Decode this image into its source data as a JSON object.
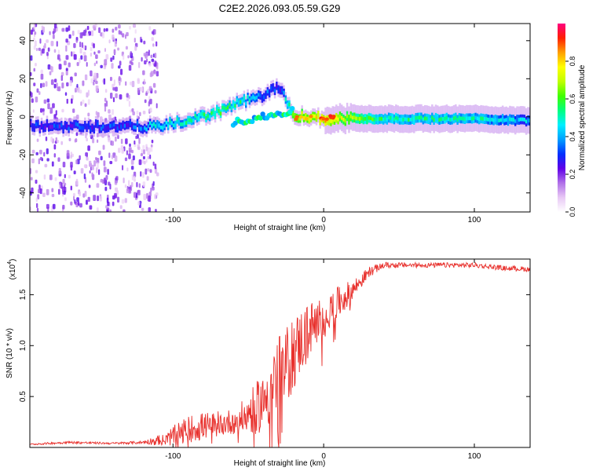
{
  "title": "C2E2.2026.093.05.59.G29",
  "chart_data": [
    {
      "type": "heatmap",
      "title": "C2E2.2026.093.05.59.G29",
      "xlabel": "Height of straight line (km)",
      "ylabel": "Frequency (Hz)",
      "xlim": [
        -195,
        137
      ],
      "ylim": [
        -50,
        49
      ],
      "xticks": [
        {
          "v": -100,
          "label": "-100"
        },
        {
          "v": 0,
          "label": "0"
        },
        {
          "v": 100,
          "label": "100"
        }
      ],
      "yticks": [
        {
          "v": -40,
          "label": "-40"
        },
        {
          "v": -20,
          "label": "-20"
        },
        {
          "v": 0,
          "label": "0"
        },
        {
          "v": 20,
          "label": "20"
        },
        {
          "v": 40,
          "label": "40"
        }
      ],
      "colorbar": {
        "label": "Normalized spectral amplitude",
        "range": [
          0,
          1
        ],
        "ticks": [
          {
            "v": 0.0,
            "label": "0.0"
          },
          {
            "v": 0.2,
            "label": "0.2"
          },
          {
            "v": 0.4,
            "label": "0.4"
          },
          {
            "v": 0.6,
            "label": "0.6"
          },
          {
            "v": 0.8,
            "label": "0.8"
          }
        ],
        "colors": [
          "#ffffff",
          "#e8c8f5",
          "#b070e8",
          "#6000e8",
          "#0030ff",
          "#00a0ff",
          "#00f0ff",
          "#00ff80",
          "#40ff00",
          "#c0ff00",
          "#ffff00",
          "#ffa000",
          "#ff2000",
          "#ff0080"
        ]
      },
      "ridge": [
        {
          "x": -195,
          "f": -5,
          "amp": 0.28
        },
        {
          "x": -130,
          "f": -5,
          "amp": 0.3
        },
        {
          "x": -110,
          "f": -5,
          "amp": 0.45
        },
        {
          "x": -90,
          "f": -2,
          "amp": 0.5
        },
        {
          "x": -70,
          "f": 3,
          "amp": 0.55
        },
        {
          "x": -55,
          "f": 8,
          "amp": 0.5
        },
        {
          "x": -40,
          "f": 11,
          "amp": 0.35
        },
        {
          "x": -30,
          "f": 16,
          "amp": 0.25
        },
        {
          "x": -20,
          "f": 1,
          "amp": 0.7
        },
        {
          "x": 0,
          "f": -1,
          "amp": 0.8
        },
        {
          "x": 40,
          "f": -1,
          "amp": 0.52
        },
        {
          "x": 100,
          "f": -1,
          "amp": 0.5
        },
        {
          "x": 137,
          "f": -2,
          "amp": 0.4
        }
      ]
    },
    {
      "type": "line",
      "xlabel": "Height of straight line (km)",
      "ylabel": "SNR (10 * v/v)",
      "scale_label": "(x10",
      "scale_exp": "4",
      "xlim": [
        -195,
        137
      ],
      "ylim": [
        0,
        18500
      ],
      "xticks": [
        {
          "v": -100,
          "label": "-100"
        },
        {
          "v": 0,
          "label": "0"
        },
        {
          "v": 100,
          "label": "100"
        }
      ],
      "yticks": [
        {
          "v": 5000,
          "label": "0.5"
        },
        {
          "v": 10000,
          "label": "1.0"
        },
        {
          "v": 15000,
          "label": "1.5"
        }
      ],
      "series": [
        {
          "name": "SNR",
          "color": "#e8302c",
          "x": [
            -195,
            -170,
            -140,
            -120,
            -105,
            -95,
            -85,
            -75,
            -65,
            -55,
            -45,
            -38,
            -30,
            -22,
            -15,
            -10,
            -5,
            0,
            10,
            20,
            30,
            40,
            60,
            80,
            100,
            120,
            137
          ],
          "y": [
            300,
            500,
            400,
            500,
            800,
            1500,
            2000,
            2200,
            2400,
            2900,
            3800,
            5200,
            7000,
            8700,
            10500,
            11500,
            12200,
            12800,
            14200,
            15600,
            17200,
            17900,
            17900,
            17900,
            17900,
            17600,
            17500
          ],
          "noise": [
            80,
            120,
            100,
            150,
            700,
            1200,
            1400,
            1300,
            1200,
            1500,
            2500,
            3500,
            4000,
            3800,
            3200,
            2800,
            2500,
            2200,
            1600,
            1000,
            500,
            300,
            250,
            250,
            250,
            250,
            250
          ]
        }
      ]
    }
  ]
}
